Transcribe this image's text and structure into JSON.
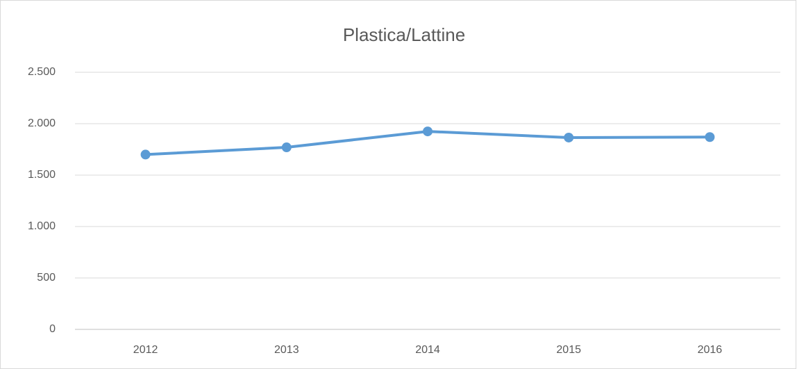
{
  "chart_data": {
    "type": "line",
    "title": "Plastica/Lattine",
    "categories": [
      "2012",
      "2013",
      "2014",
      "2015",
      "2016"
    ],
    "values": [
      1700,
      1770,
      1925,
      1865,
      1870
    ],
    "color": "#5b9bd5",
    "ylim": [
      0,
      2500
    ],
    "yticks": [
      0,
      500,
      {
        "value": 1000,
        "label": "1.000"
      },
      {
        "value": 1500,
        "label": "1.500"
      },
      {
        "value": 2000,
        "label": "2.000"
      },
      {
        "value": 2500,
        "label": "2.500"
      }
    ],
    "grid": true
  }
}
